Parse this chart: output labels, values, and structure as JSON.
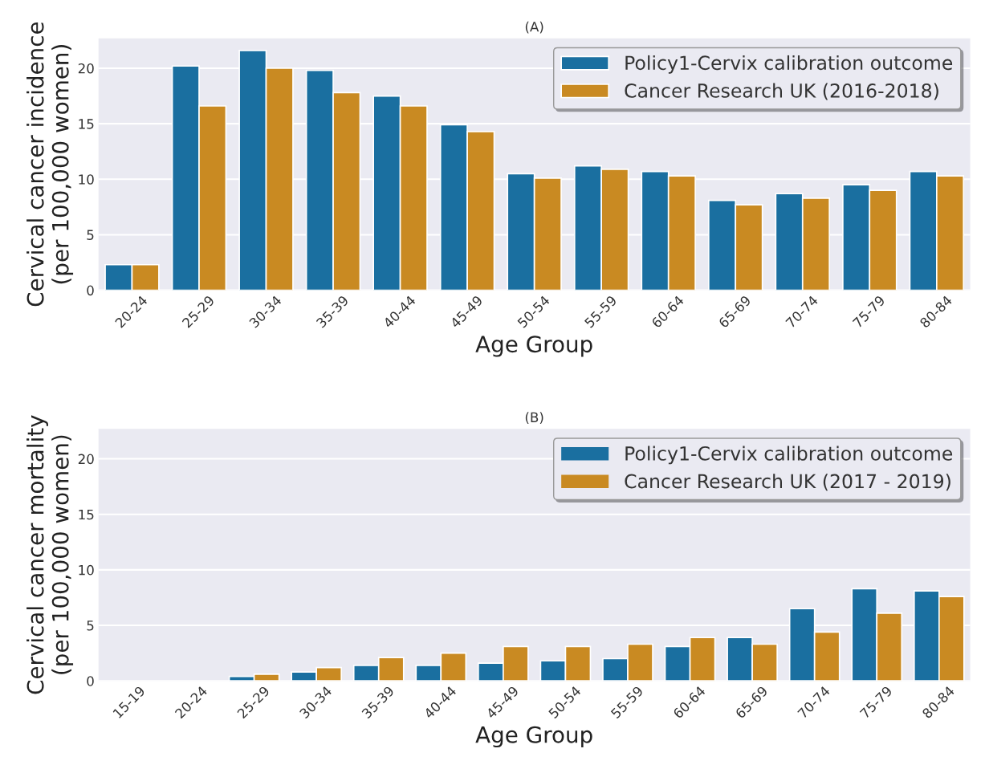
{
  "chart_data": [
    {
      "type": "bar",
      "title": "(A)",
      "xlabel": "Age Group",
      "ylabel": "Cervical cancer incidence\n(per 100,000 women)",
      "categories": [
        "20-24",
        "25-29",
        "30-34",
        "35-39",
        "40-44",
        "45-49",
        "50-54",
        "55-59",
        "60-64",
        "65-69",
        "70-74",
        "75-79",
        "80-84"
      ],
      "series": [
        {
          "name": "Policy1-Cervix calibration outcome",
          "color": "#1a6fa0",
          "values": [
            2.3,
            20.2,
            21.6,
            19.8,
            17.5,
            14.9,
            10.5,
            11.2,
            10.7,
            8.1,
            8.7,
            9.5,
            10.7
          ]
        },
        {
          "name": "Cancer Research UK (2016-2018)",
          "color": "#c98a22",
          "values": [
            2.3,
            16.6,
            20.0,
            17.8,
            16.6,
            14.3,
            10.1,
            10.9,
            10.3,
            7.7,
            8.3,
            9.0,
            10.3
          ]
        }
      ],
      "ylim": [
        0,
        22.7
      ],
      "yticks": [
        0,
        5,
        10,
        15,
        20
      ],
      "grid": "y",
      "legend": "top right"
    },
    {
      "type": "bar",
      "title": "(B)",
      "xlabel": "Age Group",
      "ylabel": "Cervical cancer mortality\n(per 100,000 women)",
      "categories": [
        "15-19",
        "20-24",
        "25-29",
        "30-34",
        "35-39",
        "40-44",
        "45-49",
        "50-54",
        "55-59",
        "60-64",
        "65-69",
        "70-74",
        "75-79",
        "80-84"
      ],
      "series": [
        {
          "name": "Policy1-Cervix calibration outcome",
          "color": "#1a6fa0",
          "values": [
            null,
            null,
            0.4,
            0.8,
            1.4,
            1.4,
            1.6,
            1.8,
            2.0,
            3.1,
            3.9,
            6.5,
            8.3,
            8.1
          ]
        },
        {
          "name": "Cancer Research UK (2017 - 2019)",
          "color": "#c98a22",
          "values": [
            0,
            null,
            0.6,
            1.2,
            2.1,
            2.5,
            3.1,
            3.1,
            3.3,
            3.9,
            3.3,
            4.4,
            6.1,
            7.6
          ]
        }
      ],
      "ylim": [
        0,
        22.7
      ],
      "yticks": [
        0,
        5,
        10,
        15,
        20
      ],
      "grid": "y",
      "legend": "top right"
    }
  ]
}
